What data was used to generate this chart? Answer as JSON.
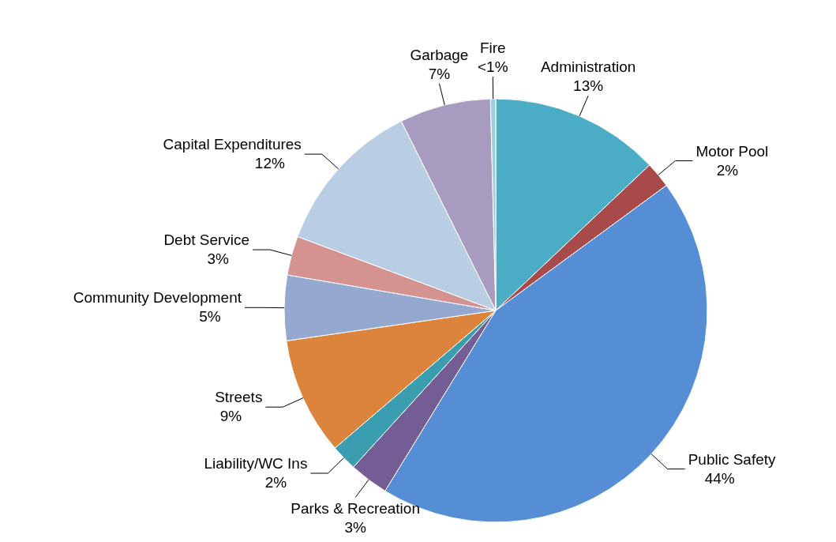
{
  "chart_data": {
    "type": "pie",
    "categories": [
      "Administration",
      "Motor Pool",
      "Public Safety",
      "Parks & Recreation",
      "Liability/WC Ins",
      "Streets",
      "Community Development",
      "Debt Service",
      "Capital Expenditures",
      "Garbage",
      "Fire"
    ],
    "values": [
      13,
      2,
      44,
      3,
      2,
      9,
      5,
      3,
      12,
      7,
      0.4
    ],
    "value_labels": [
      "13%",
      "2%",
      "44%",
      "3%",
      "2%",
      "9%",
      "5%",
      "3%",
      "12%",
      "7%",
      "<1%"
    ],
    "colors": [
      "#4bacc6",
      "#a84a4a",
      "#558ed5",
      "#745c94",
      "#3b9db0",
      "#dc843c",
      "#95a9d0",
      "#d49391",
      "#b9cde4",
      "#a89bc0",
      "#9ccfdc"
    ]
  }
}
